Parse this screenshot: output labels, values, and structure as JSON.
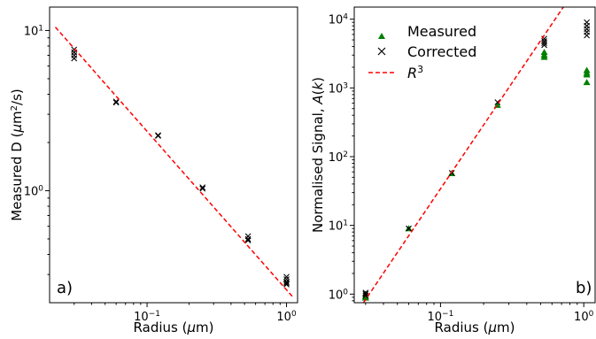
{
  "chart_data": [
    {
      "panel": "a)",
      "type": "scatter",
      "xscale": "log",
      "yscale": "log",
      "xlim": [
        0.02,
        1.2
      ],
      "ylim": [
        0.2,
        14
      ],
      "xlabel": {
        "pre": "Radius (",
        "sym": "μ",
        "post": "m)"
      },
      "ylabel": {
        "pre": "Measured D (",
        "sym": "μ",
        "mid": "m",
        "sup": "2",
        "post": "/s)"
      },
      "xticks": [
        {
          "v": 0.1,
          "base": "10",
          "exp": "−1"
        },
        {
          "v": 1,
          "base": "10",
          "exp": "0"
        }
      ],
      "yticks": [
        {
          "v": 1,
          "base": "10",
          "exp": "0"
        },
        {
          "v": 10,
          "base": "10",
          "exp": "1"
        }
      ],
      "series": [
        {
          "marker": "x",
          "color": "#000000",
          "points": [
            [
              0.03,
              7.6
            ],
            [
              0.03,
              7.3
            ],
            [
              0.03,
              7.0
            ],
            [
              0.03,
              6.7
            ],
            [
              0.06,
              3.6
            ],
            [
              0.06,
              3.55
            ],
            [
              0.12,
              2.22
            ],
            [
              0.12,
              2.2
            ],
            [
              0.25,
              1.05
            ],
            [
              0.25,
              1.03
            ],
            [
              0.53,
              0.52
            ],
            [
              0.53,
              0.5
            ],
            [
              0.53,
              0.49
            ],
            [
              1.0,
              0.29
            ],
            [
              1.0,
              0.28
            ],
            [
              1.0,
              0.27
            ],
            [
              1.0,
              0.265
            ],
            [
              1.0,
              0.26
            ]
          ]
        },
        {
          "style": "dashed",
          "color": "#ff0000",
          "points": [
            [
              0.022,
              10.5
            ],
            [
              1.12,
              0.215
            ]
          ]
        }
      ]
    },
    {
      "panel": "b)",
      "type": "scatter",
      "xscale": "log",
      "yscale": "log",
      "xlim": [
        0.025,
        1.2
      ],
      "ylim": [
        0.75,
        15000
      ],
      "xlabel": {
        "pre": "Radius (",
        "sym": "μ",
        "post": "m)"
      },
      "ylabel": {
        "pre": "Normalised Signal, ",
        "ital": "A",
        "mid": "(",
        "ital2": "k",
        "post": ")"
      },
      "xticks": [
        {
          "v": 0.1,
          "base": "10",
          "exp": "−1"
        },
        {
          "v": 1,
          "base": "10",
          "exp": "0"
        }
      ],
      "yticks": [
        {
          "v": 1,
          "base": "10",
          "exp": "0"
        },
        {
          "v": 10,
          "base": "10",
          "exp": "1"
        },
        {
          "v": 100,
          "base": "10",
          "exp": "2"
        },
        {
          "v": 1000,
          "base": "10",
          "exp": "3"
        },
        {
          "v": 10000,
          "base": "10",
          "exp": "4"
        }
      ],
      "series": [
        {
          "name": "Measured",
          "marker": "triangle",
          "color": "#008000",
          "points": [
            [
              0.03,
              1.0
            ],
            [
              0.03,
              0.92
            ],
            [
              0.03,
              0.88
            ],
            [
              0.06,
              9.0
            ],
            [
              0.12,
              57
            ],
            [
              0.25,
              560
            ],
            [
              0.53,
              3300
            ],
            [
              0.53,
              3000
            ],
            [
              0.53,
              2800
            ],
            [
              1.05,
              1800
            ],
            [
              1.05,
              1650
            ],
            [
              1.05,
              1550
            ],
            [
              1.05,
              1200
            ]
          ]
        },
        {
          "name": "Corrected",
          "marker": "x",
          "color": "#000000",
          "points": [
            [
              0.03,
              1.05
            ],
            [
              0.03,
              1.0
            ],
            [
              0.03,
              0.95
            ],
            [
              0.06,
              9.0
            ],
            [
              0.12,
              58
            ],
            [
              0.25,
              620
            ],
            [
              0.53,
              5200
            ],
            [
              0.53,
              4800
            ],
            [
              0.53,
              4500
            ],
            [
              0.53,
              4200
            ],
            [
              1.05,
              9000
            ],
            [
              1.05,
              8000
            ],
            [
              1.05,
              7200
            ],
            [
              1.05,
              6500
            ],
            [
              1.05,
              5800
            ]
          ]
        },
        {
          "name": {
            "base": "R",
            "sup": "3"
          },
          "style": "dashed",
          "color": "#ff0000",
          "points": [
            [
              0.029,
              0.75
            ],
            [
              0.72,
              15000
            ]
          ]
        }
      ],
      "legend": "top-left"
    }
  ]
}
